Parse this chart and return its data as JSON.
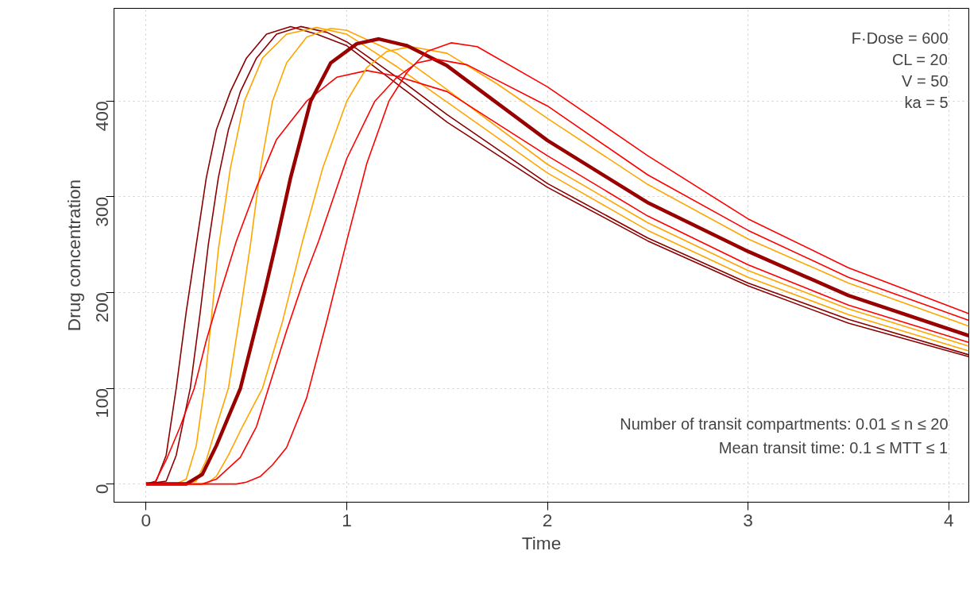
{
  "chart_data": {
    "type": "line",
    "xlabel": "Time",
    "ylabel": "Drug concentration",
    "xlim": [
      -0.16,
      4.1
    ],
    "ylim": [
      -19,
      497
    ],
    "xticks": [
      0,
      1,
      2,
      3,
      4
    ],
    "yticks": [
      0,
      100,
      200,
      300,
      400
    ],
    "grid": true,
    "marker": "none",
    "line_style": "solid",
    "annotations": [
      "F·Dose = 600",
      "CL = 20",
      "V = 50",
      "ka = 5",
      "Number of transit compartments: 0.01 ≤ n ≤ 20",
      "Mean transit time: 0.1 ≤ MTT ≤ 1"
    ],
    "series": [
      {
        "color": "#8b0000",
        "x": [
          0,
          0.05,
          0.1,
          0.15,
          0.2,
          0.25,
          0.3,
          0.35,
          0.42,
          0.5,
          0.6,
          0.72,
          0.85,
          1.0,
          1.25,
          1.5,
          2,
          2.5,
          3,
          3.5,
          4.1
        ],
        "values": [
          0,
          3,
          30,
          100,
          180,
          250,
          320,
          370,
          410,
          445,
          470,
          478,
          470,
          458,
          418,
          378,
          310,
          254,
          207,
          168,
          133
        ]
      },
      {
        "color": "#8b0000",
        "x": [
          0,
          0.1,
          0.15,
          0.22,
          0.27,
          0.31,
          0.36,
          0.41,
          0.47,
          0.55,
          0.65,
          0.77,
          0.9,
          1.0,
          1.25,
          1.5,
          2,
          2.5,
          3,
          3.5,
          4.1
        ],
        "values": [
          0,
          3,
          30,
          100,
          180,
          250,
          320,
          370,
          410,
          445,
          470,
          478,
          472,
          462,
          425,
          386,
          314,
          257,
          210,
          172,
          135
        ]
      },
      {
        "color": "#ffa500",
        "x": [
          0,
          0.15,
          0.2,
          0.25,
          0.29,
          0.36,
          0.42,
          0.49,
          0.58,
          0.7,
          0.85,
          1.0,
          1.25,
          1.5,
          2,
          2.5,
          3,
          3.5,
          4.1
        ],
        "values": [
          0,
          0,
          5,
          40,
          100,
          245,
          330,
          400,
          445,
          470,
          477,
          470,
          436,
          399,
          325,
          265,
          216,
          177,
          139
        ]
      },
      {
        "color": "#ffa500",
        "x": [
          0,
          0.2,
          0.25,
          0.3,
          0.35,
          0.41,
          0.47,
          0.52,
          0.57,
          0.63,
          0.7,
          0.8,
          0.92,
          1.0,
          1.25,
          1.5,
          2,
          2.5,
          3,
          3.5,
          4.1
        ],
        "values": [
          0,
          0,
          3,
          25,
          60,
          100,
          180,
          250,
          330,
          400,
          440,
          467,
          476,
          474,
          450,
          412,
          334,
          273,
          223,
          183,
          144
        ]
      },
      {
        "color": "#ff0000",
        "x": [
          0,
          0.04,
          0.1,
          0.17,
          0.24,
          0.3,
          0.37,
          0.45,
          0.55,
          0.65,
          0.8,
          0.95,
          1.1,
          1.25,
          1.5,
          2,
          2.5,
          3,
          3.5,
          4.1
        ],
        "values": [
          0,
          0,
          25,
          60,
          100,
          150,
          200,
          254,
          310,
          360,
          400,
          425,
          432,
          426,
          410,
          343,
          280,
          229,
          187,
          148
        ]
      },
      {
        "color": "#ffa500",
        "x": [
          0,
          0.3,
          0.35,
          0.41,
          0.48,
          0.58,
          0.68,
          0.78,
          0.88,
          1.0,
          1.1,
          1.2,
          1.32,
          1.5,
          1.75,
          2,
          2.5,
          3,
          3.5,
          4.1
        ],
        "values": [
          0,
          0,
          8,
          30,
          60,
          100,
          170,
          254,
          330,
          400,
          435,
          452,
          457,
          450,
          418,
          382,
          313,
          256,
          210,
          165
        ]
      },
      {
        "color": "#990000",
        "x": [
          0,
          0.2,
          0.28,
          0.35,
          0.41,
          0.47,
          0.53,
          0.59,
          0.65,
          0.72,
          0.82,
          0.92,
          1.05,
          1.16,
          1.3,
          1.5,
          1.75,
          2,
          2.5,
          3,
          3.5,
          4.1
        ],
        "values": [
          0,
          0,
          10,
          40,
          70,
          100,
          150,
          200,
          254,
          320,
          400,
          440,
          460,
          465,
          458,
          437,
          398,
          359,
          294,
          243,
          197,
          155
        ]
      },
      {
        "color": "#ff0000",
        "x": [
          0,
          0.28,
          0.35,
          0.47,
          0.55,
          0.61,
          0.7,
          0.78,
          0.86,
          1.0,
          1.14,
          1.25,
          1.35,
          1.44,
          1.6,
          2,
          2.5,
          3,
          3.5,
          4.1
        ],
        "values": [
          0,
          0,
          5,
          28,
          60,
          100,
          160,
          210,
          254,
          340,
          400,
          425,
          440,
          444,
          438,
          395,
          323,
          265,
          216,
          171
        ]
      },
      {
        "color": "#ff0000",
        "x": [
          0,
          0.45,
          0.5,
          0.57,
          0.63,
          0.7,
          0.8,
          0.9,
          1.0,
          1.1,
          1.21,
          1.3,
          1.4,
          1.52,
          1.65,
          2,
          2.5,
          3,
          3.5,
          4.1
        ],
        "values": [
          0,
          0,
          2,
          8,
          20,
          38,
          90,
          170,
          254,
          335,
          400,
          430,
          452,
          461,
          457,
          415,
          343,
          277,
          226,
          178
        ]
      }
    ]
  }
}
